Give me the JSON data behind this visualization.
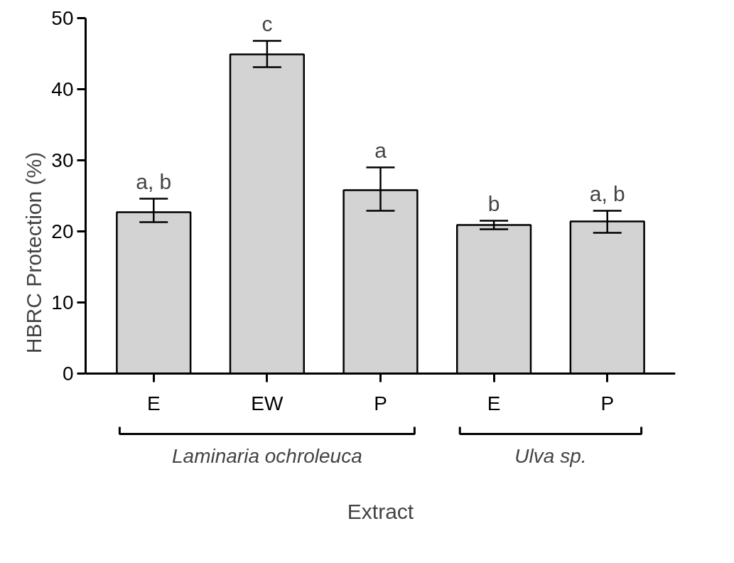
{
  "chart_data": {
    "type": "bar",
    "xlabel": "Extract",
    "ylabel": "HBRC Protection (%)",
    "categories": [
      "E",
      "EW",
      "P",
      "E",
      "P"
    ],
    "values": [
      22.7,
      44.9,
      25.8,
      20.9,
      21.4
    ],
    "errors": [
      [
        21.3,
        24.6
      ],
      [
        43.1,
        46.8
      ],
      [
        22.9,
        29.0
      ],
      [
        20.3,
        21.5
      ],
      [
        19.8,
        22.9
      ]
    ],
    "color": "#d3d3d3",
    "ylim": [
      0,
      50
    ],
    "yticks": [
      0,
      10,
      20,
      30,
      40,
      50
    ],
    "grid": false,
    "annotations": [
      "a, b",
      "c",
      "a",
      "b",
      "a, b",
      "Laminaria ochroleuca",
      "Ulva sp."
    ]
  }
}
